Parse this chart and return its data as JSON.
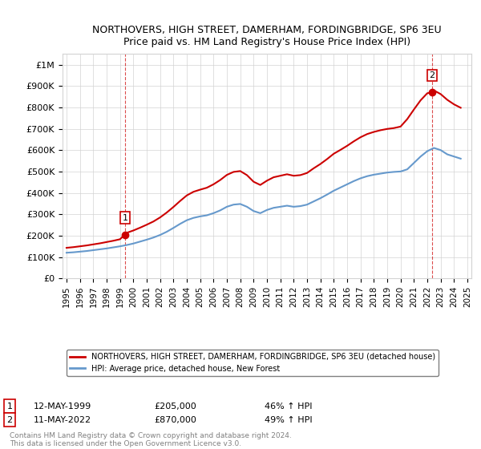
{
  "title": "NORTHOVERS, HIGH STREET, DAMERHAM, FORDINGBRIDGE, SP6 3EU",
  "subtitle": "Price paid vs. HM Land Registry's House Price Index (HPI)",
  "ylabel": "",
  "ylim": [
    0,
    1050000
  ],
  "yticks": [
    0,
    100000,
    200000,
    300000,
    400000,
    500000,
    600000,
    700000,
    800000,
    900000,
    1000000
  ],
  "ytick_labels": [
    "£0",
    "£100K",
    "£200K",
    "£300K",
    "£400K",
    "£500K",
    "£600K",
    "£700K",
    "£800K",
    "£900K",
    "£1M"
  ],
  "hpi_color": "#6699cc",
  "sale_color": "#cc0000",
  "marker_color": "#cc0000",
  "marker_box_color": "#cc0000",
  "legend_label_sale": "NORTHOVERS, HIGH STREET, DAMERHAM, FORDINGBRIDGE, SP6 3EU (detached house)",
  "legend_label_hpi": "HPI: Average price, detached house, New Forest",
  "annotation1_label": "1",
  "annotation1_date": "12-MAY-1999",
  "annotation1_price": "£205,000",
  "annotation1_hpi": "46% ↑ HPI",
  "annotation2_label": "2",
  "annotation2_date": "11-MAY-2022",
  "annotation2_price": "£870,000",
  "annotation2_hpi": "49% ↑ HPI",
  "footer": "Contains HM Land Registry data © Crown copyright and database right 2024.\nThis data is licensed under the Open Government Licence v3.0.",
  "sale_years": [
    1999.37,
    2022.37
  ],
  "sale_prices": [
    205000,
    870000
  ],
  "hpi_years": [
    1995.0,
    1995.5,
    1996.0,
    1996.5,
    1997.0,
    1997.5,
    1998.0,
    1998.5,
    1999.0,
    1999.5,
    2000.0,
    2000.5,
    2001.0,
    2001.5,
    2002.0,
    2002.5,
    2003.0,
    2003.5,
    2004.0,
    2004.5,
    2005.0,
    2005.5,
    2006.0,
    2006.5,
    2007.0,
    2007.5,
    2008.0,
    2008.5,
    2009.0,
    2009.5,
    2010.0,
    2010.5,
    2011.0,
    2011.5,
    2012.0,
    2012.5,
    2013.0,
    2013.5,
    2014.0,
    2014.5,
    2015.0,
    2015.5,
    2016.0,
    2016.5,
    2017.0,
    2017.5,
    2018.0,
    2018.5,
    2019.0,
    2019.5,
    2020.0,
    2020.5,
    2021.0,
    2021.5,
    2022.0,
    2022.5,
    2023.0,
    2023.5,
    2024.0,
    2024.5
  ],
  "hpi_values": [
    120000,
    122000,
    125000,
    128000,
    132000,
    136000,
    140000,
    145000,
    150000,
    156000,
    163000,
    172000,
    181000,
    191000,
    203000,
    218000,
    236000,
    255000,
    272000,
    283000,
    290000,
    295000,
    305000,
    318000,
    335000,
    345000,
    348000,
    335000,
    315000,
    305000,
    320000,
    330000,
    335000,
    340000,
    335000,
    338000,
    345000,
    360000,
    375000,
    392000,
    410000,
    425000,
    440000,
    455000,
    468000,
    478000,
    485000,
    490000,
    495000,
    498000,
    500000,
    510000,
    540000,
    570000,
    595000,
    610000,
    600000,
    580000,
    570000,
    560000
  ],
  "red_line_years": [
    1995.0,
    1995.5,
    1996.0,
    1996.5,
    1997.0,
    1997.5,
    1998.0,
    1998.5,
    1999.0,
    1999.37,
    1999.5,
    2000.0,
    2000.5,
    2001.0,
    2001.5,
    2002.0,
    2002.5,
    2003.0,
    2003.5,
    2004.0,
    2004.5,
    2005.0,
    2005.5,
    2006.0,
    2006.5,
    2007.0,
    2007.5,
    2008.0,
    2008.5,
    2009.0,
    2009.5,
    2010.0,
    2010.5,
    2011.0,
    2011.5,
    2012.0,
    2012.5,
    2013.0,
    2013.5,
    2014.0,
    2014.5,
    2015.0,
    2015.5,
    2016.0,
    2016.5,
    2017.0,
    2017.5,
    2018.0,
    2018.5,
    2019.0,
    2019.5,
    2020.0,
    2020.5,
    2021.0,
    2021.5,
    2022.0,
    2022.37,
    2022.5,
    2023.0,
    2023.5,
    2024.0,
    2024.5
  ],
  "red_line_values": [
    143000,
    146000,
    150000,
    154000,
    159000,
    164000,
    170000,
    176000,
    183000,
    205000,
    213000,
    224000,
    237000,
    251000,
    266000,
    285000,
    308000,
    334000,
    362000,
    388000,
    405000,
    415000,
    424000,
    440000,
    460000,
    484000,
    498000,
    502000,
    483000,
    452000,
    437000,
    457000,
    473000,
    480000,
    487000,
    480000,
    483000,
    493000,
    515000,
    535000,
    558000,
    583000,
    601000,
    620000,
    641000,
    660000,
    675000,
    685000,
    693000,
    699000,
    703000,
    710000,
    745000,
    790000,
    833000,
    866000,
    870000,
    879000,
    862000,
    835000,
    814000,
    798000
  ]
}
